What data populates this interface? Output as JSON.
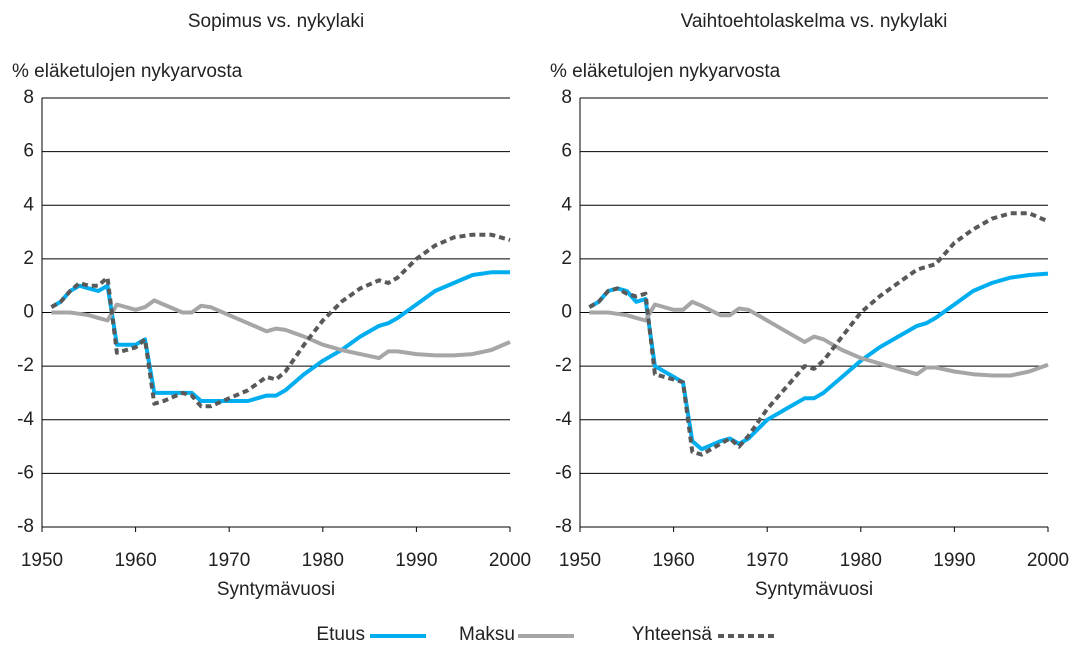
{
  "chart_data": [
    {
      "type": "line",
      "title": "Sopimus vs. nykylaki",
      "ylabel": "% eläketulojen nykyarvosta",
      "xlabel": "Syntymävuosi",
      "legend": "bottom",
      "x": [
        1951,
        1952,
        1953,
        1954,
        1955,
        1956,
        1957,
        1958,
        1960,
        1961,
        1962,
        1963,
        1965,
        1966,
        1967,
        1968,
        1970,
        1972,
        1974,
        1975,
        1976,
        1978,
        1980,
        1982,
        1984,
        1986,
        1987,
        1988,
        1990,
        1992,
        1994,
        1996,
        1998,
        2000
      ],
      "xlim": [
        1950,
        2000
      ],
      "xticks": [
        1950,
        1960,
        1970,
        1980,
        1990,
        2000
      ],
      "ylim": [
        -8,
        8
      ],
      "yticks": [
        -8,
        -6,
        -4,
        -2,
        0,
        2,
        4,
        6,
        8
      ],
      "grid": true,
      "series": [
        {
          "name": "Etuus",
          "color": "#00aeef",
          "style": "solid",
          "values": [
            0.2,
            0.4,
            0.8,
            1.0,
            0.9,
            0.8,
            1.0,
            -1.2,
            -1.2,
            -1.0,
            -3.0,
            -3.0,
            -3.0,
            -3.0,
            -3.3,
            -3.3,
            -3.3,
            -3.3,
            -3.1,
            -3.1,
            -2.9,
            -2.3,
            -1.8,
            -1.4,
            -0.9,
            -0.5,
            -0.4,
            -0.2,
            0.3,
            0.8,
            1.1,
            1.4,
            1.5,
            1.5
          ]
        },
        {
          "name": "Maksu",
          "color": "#a6a6a6",
          "style": "solid",
          "values": [
            0.0,
            0.0,
            0.0,
            -0.05,
            -0.1,
            -0.2,
            -0.3,
            0.3,
            0.1,
            0.2,
            0.45,
            0.3,
            0.0,
            0.0,
            0.25,
            0.2,
            -0.1,
            -0.4,
            -0.7,
            -0.6,
            -0.65,
            -0.9,
            -1.2,
            -1.4,
            -1.55,
            -1.7,
            -1.45,
            -1.45,
            -1.55,
            -1.6,
            -1.6,
            -1.55,
            -1.4,
            -1.1
          ]
        },
        {
          "name": "Yhteensä",
          "color": "#595959",
          "style": "dotted",
          "values": [
            0.2,
            0.4,
            0.8,
            1.1,
            1.0,
            1.0,
            1.3,
            -1.5,
            -1.3,
            -1.0,
            -3.4,
            -3.3,
            -3.0,
            -3.1,
            -3.5,
            -3.5,
            -3.2,
            -2.9,
            -2.4,
            -2.5,
            -2.2,
            -1.2,
            -0.3,
            0.4,
            0.9,
            1.2,
            1.1,
            1.3,
            2.0,
            2.5,
            2.8,
            2.9,
            2.9,
            2.7
          ]
        }
      ]
    },
    {
      "type": "line",
      "title": "Vaihtoehtolaskelma vs. nykylaki",
      "ylabel": "% eläketulojen nykyarvosta",
      "xlabel": "Syntymävuosi",
      "x": [
        1951,
        1952,
        1953,
        1954,
        1955,
        1956,
        1957,
        1958,
        1960,
        1961,
        1962,
        1963,
        1965,
        1966,
        1967,
        1968,
        1970,
        1972,
        1974,
        1975,
        1976,
        1978,
        1980,
        1982,
        1984,
        1986,
        1987,
        1988,
        1990,
        1992,
        1994,
        1996,
        1998,
        2000
      ],
      "xlim": [
        1950,
        2000
      ],
      "xticks": [
        1950,
        1960,
        1970,
        1980,
        1990,
        2000
      ],
      "ylim": [
        -8,
        8
      ],
      "yticks": [
        -8,
        -6,
        -4,
        -2,
        0,
        2,
        4,
        6,
        8
      ],
      "grid": true,
      "series": [
        {
          "name": "Etuus",
          "color": "#00aeef",
          "style": "solid",
          "values": [
            0.2,
            0.4,
            0.8,
            0.9,
            0.8,
            0.4,
            0.5,
            -2.0,
            -2.4,
            -2.6,
            -4.8,
            -5.1,
            -4.8,
            -4.7,
            -4.9,
            -4.7,
            -4.0,
            -3.6,
            -3.2,
            -3.2,
            -3.0,
            -2.4,
            -1.8,
            -1.3,
            -0.9,
            -0.5,
            -0.4,
            -0.2,
            0.3,
            0.8,
            1.1,
            1.3,
            1.4,
            1.45
          ]
        },
        {
          "name": "Maksu",
          "color": "#a6a6a6",
          "style": "solid",
          "values": [
            0.0,
            0.0,
            0.0,
            -0.05,
            -0.1,
            -0.2,
            -0.3,
            0.3,
            0.1,
            0.1,
            0.4,
            0.25,
            -0.1,
            -0.1,
            0.15,
            0.1,
            -0.3,
            -0.7,
            -1.1,
            -0.9,
            -1.0,
            -1.4,
            -1.7,
            -1.9,
            -2.1,
            -2.3,
            -2.05,
            -2.05,
            -2.2,
            -2.3,
            -2.35,
            -2.35,
            -2.2,
            -1.95
          ]
        },
        {
          "name": "Yhteensä",
          "color": "#595959",
          "style": "dotted",
          "values": [
            0.2,
            0.4,
            0.8,
            0.9,
            0.7,
            0.6,
            0.7,
            -2.3,
            -2.5,
            -2.6,
            -5.2,
            -5.3,
            -4.9,
            -4.7,
            -5.0,
            -4.6,
            -3.6,
            -2.8,
            -2.0,
            -2.1,
            -1.8,
            -0.9,
            0.0,
            0.6,
            1.1,
            1.6,
            1.7,
            1.8,
            2.6,
            3.1,
            3.5,
            3.7,
            3.7,
            3.4
          ]
        }
      ]
    }
  ]
}
